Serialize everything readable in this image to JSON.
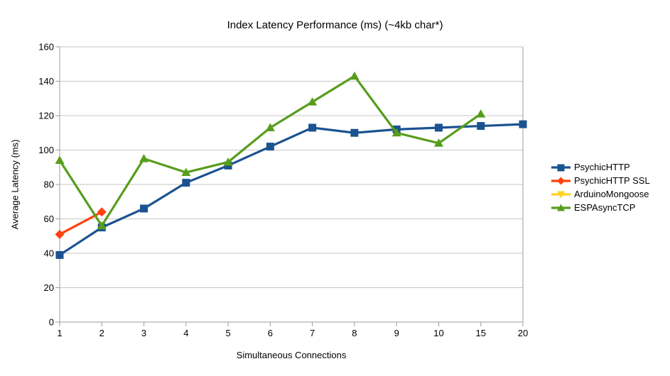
{
  "chart_data": {
    "type": "line",
    "title": "Index Latency Performance (ms) (~4kb char*)",
    "xlabel": "Simultaneous Connections",
    "ylabel": "Average Latency (ms)",
    "categories": [
      "1",
      "2",
      "3",
      "4",
      "5",
      "6",
      "7",
      "8",
      "9",
      "10",
      "15",
      "20"
    ],
    "ylim": [
      0,
      160
    ],
    "ytick_step": 20,
    "grid": "horizontal-only",
    "legend_position": "right",
    "colors": {
      "gridline": "#c6c6c6",
      "axis_frame": "#9c9c9c",
      "tick": "#9c9c9c",
      "text": "#000000",
      "background": "#ffffff"
    },
    "series": [
      {
        "name": "PsychicHTTP",
        "color": "#1b5391",
        "marker": "square",
        "values": [
          39,
          55,
          66,
          81,
          91,
          102,
          113,
          110,
          112,
          113,
          114,
          115
        ]
      },
      {
        "name": "PsychicHTTP SSL",
        "color": "#ff420e",
        "marker": "diamond",
        "values": [
          51,
          64
        ]
      },
      {
        "name": "ArduinoMongoose",
        "color": "#ffd320",
        "marker": "triangle-down",
        "values": []
      },
      {
        "name": "ESPAsyncTCP",
        "color": "#579d1c",
        "marker": "triangle-up",
        "values": [
          94,
          56,
          95,
          87,
          93,
          113,
          128,
          143,
          110,
          104,
          121
        ]
      }
    ]
  }
}
